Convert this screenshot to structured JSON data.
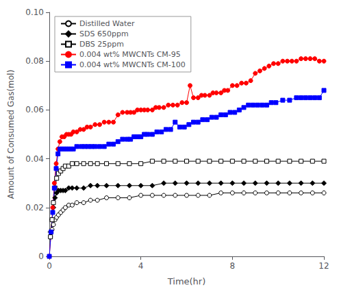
{
  "chart_data": {
    "type": "line",
    "title": "",
    "xlabel": "Time(hr)",
    "ylabel": "Amount of Consumed Gas(mol)",
    "xlim": [
      0,
      12
    ],
    "ylim": [
      0,
      0.1
    ],
    "xticks": [
      0,
      4,
      8,
      12
    ],
    "yticks": [
      0,
      0.02,
      0.04,
      0.06,
      0.08,
      {
        "value": 0.1,
        "label": "0.10"
      }
    ],
    "grid": false,
    "legend": "upper-left",
    "series": [
      {
        "name": "Distilled Water",
        "color": "black",
        "marker": "open-circle",
        "x": [
          0.05,
          0.12,
          0.18,
          0.25,
          0.32,
          0.4,
          0.5,
          0.6,
          0.7,
          0.85,
          1.0,
          1.2,
          1.5,
          1.8,
          2.1,
          2.5,
          3.0,
          3.5,
          4.0,
          4.5,
          5.0,
          5.5,
          6.0,
          6.5,
          7.0,
          7.5,
          8.0,
          8.5,
          9.0,
          9.5,
          10.0,
          10.5,
          11.0,
          11.5,
          12.0
        ],
        "values": [
          0.008,
          0.011,
          0.013,
          0.015,
          0.016,
          0.017,
          0.018,
          0.019,
          0.02,
          0.021,
          0.021,
          0.022,
          0.022,
          0.023,
          0.023,
          0.024,
          0.024,
          0.024,
          0.025,
          0.025,
          0.025,
          0.025,
          0.025,
          0.025,
          0.025,
          0.026,
          0.026,
          0.026,
          0.026,
          0.026,
          0.026,
          0.026,
          0.026,
          0.026,
          0.026
        ]
      },
      {
        "name": "SDS 650ppm",
        "color": "black",
        "marker": "diamond",
        "x": [
          0.05,
          0.12,
          0.18,
          0.25,
          0.32,
          0.4,
          0.5,
          0.6,
          0.7,
          0.85,
          1.0,
          1.2,
          1.5,
          1.8,
          2.1,
          2.5,
          3.0,
          3.5,
          4.0,
          4.5,
          5.0,
          5.5,
          6.0,
          6.5,
          7.0,
          7.5,
          8.0,
          8.5,
          9.0,
          9.5,
          10.0,
          10.5,
          11.0,
          11.5,
          12.0
        ],
        "values": [
          0.01,
          0.015,
          0.02,
          0.024,
          0.026,
          0.027,
          0.027,
          0.027,
          0.027,
          0.028,
          0.028,
          0.028,
          0.028,
          0.029,
          0.029,
          0.029,
          0.029,
          0.029,
          0.029,
          0.029,
          0.03,
          0.03,
          0.03,
          0.03,
          0.03,
          0.03,
          0.03,
          0.03,
          0.03,
          0.03,
          0.03,
          0.03,
          0.03,
          0.03,
          0.03
        ]
      },
      {
        "name": "DBS 25ppm",
        "color": "black",
        "marker": "open-square",
        "x": [
          0.05,
          0.12,
          0.18,
          0.25,
          0.32,
          0.4,
          0.5,
          0.6,
          0.7,
          0.85,
          1.0,
          1.2,
          1.5,
          1.8,
          2.1,
          2.5,
          3.0,
          3.5,
          4.0,
          4.5,
          5.0,
          5.5,
          6.0,
          6.5,
          7.0,
          7.5,
          8.0,
          8.5,
          9.0,
          9.5,
          10.0,
          10.5,
          11.0,
          11.5,
          12.0
        ],
        "values": [
          0.008,
          0.015,
          0.022,
          0.028,
          0.032,
          0.034,
          0.035,
          0.036,
          0.037,
          0.037,
          0.038,
          0.038,
          0.038,
          0.038,
          0.038,
          0.038,
          0.038,
          0.038,
          0.038,
          0.039,
          0.039,
          0.039,
          0.039,
          0.039,
          0.039,
          0.039,
          0.039,
          0.039,
          0.039,
          0.039,
          0.039,
          0.039,
          0.039,
          0.039,
          0.039
        ]
      },
      {
        "name": "0.004 wt% MWCNTs CM-95",
        "color": "red",
        "marker": "circle",
        "x": [
          0.0,
          0.08,
          0.15,
          0.22,
          0.3,
          0.38,
          0.46,
          0.55,
          0.65,
          0.75,
          0.85,
          0.95,
          1.05,
          1.2,
          1.35,
          1.5,
          1.65,
          1.8,
          2.0,
          2.2,
          2.4,
          2.6,
          2.8,
          3.0,
          3.2,
          3.4,
          3.55,
          3.7,
          3.85,
          4.0,
          4.15,
          4.3,
          4.5,
          4.65,
          4.8,
          5.0,
          5.2,
          5.4,
          5.6,
          5.8,
          6.0,
          6.15,
          6.3,
          6.5,
          6.65,
          6.8,
          7.0,
          7.15,
          7.3,
          7.5,
          7.65,
          7.8,
          8.0,
          8.2,
          8.4,
          8.6,
          8.8,
          9.0,
          9.2,
          9.4,
          9.6,
          9.8,
          10.0,
          10.2,
          10.4,
          10.6,
          10.8,
          11.0,
          11.2,
          11.4,
          11.6,
          11.8,
          12.0
        ],
        "values": [
          0.0,
          0.01,
          0.02,
          0.03,
          0.038,
          0.044,
          0.047,
          0.049,
          0.049,
          0.05,
          0.05,
          0.05,
          0.051,
          0.051,
          0.052,
          0.052,
          0.053,
          0.053,
          0.054,
          0.054,
          0.055,
          0.055,
          0.055,
          0.058,
          0.059,
          0.059,
          0.059,
          0.059,
          0.06,
          0.06,
          0.06,
          0.06,
          0.06,
          0.061,
          0.061,
          0.061,
          0.062,
          0.062,
          0.062,
          0.063,
          0.063,
          0.07,
          0.065,
          0.065,
          0.066,
          0.066,
          0.066,
          0.067,
          0.067,
          0.067,
          0.068,
          0.068,
          0.07,
          0.07,
          0.071,
          0.071,
          0.072,
          0.075,
          0.076,
          0.077,
          0.078,
          0.079,
          0.079,
          0.08,
          0.08,
          0.08,
          0.08,
          0.081,
          0.081,
          0.081,
          0.081,
          0.08,
          0.08
        ]
      },
      {
        "name": "0.004 wt% MWCNTs CM-100",
        "color": "blue",
        "marker": "square",
        "x": [
          0.0,
          0.08,
          0.15,
          0.22,
          0.3,
          0.38,
          0.46,
          0.55,
          0.65,
          0.75,
          0.85,
          0.95,
          1.05,
          1.2,
          1.4,
          1.55,
          1.7,
          1.85,
          2.0,
          2.2,
          2.4,
          2.6,
          2.8,
          3.0,
          3.2,
          3.4,
          3.55,
          3.7,
          3.85,
          4.0,
          4.15,
          4.3,
          4.5,
          4.7,
          4.9,
          5.1,
          5.3,
          5.5,
          5.7,
          5.9,
          6.1,
          6.3,
          6.5,
          6.7,
          6.9,
          7.1,
          7.3,
          7.5,
          7.7,
          7.9,
          8.1,
          8.3,
          8.5,
          8.7,
          8.9,
          9.1,
          9.3,
          9.5,
          9.7,
          9.9,
          10.2,
          10.5,
          10.8,
          11.0,
          11.2,
          11.4,
          11.6,
          11.8,
          12.0
        ],
        "values": [
          0.0,
          0.01,
          0.018,
          0.028,
          0.036,
          0.042,
          0.044,
          0.044,
          0.044,
          0.044,
          0.044,
          0.044,
          0.044,
          0.045,
          0.045,
          0.045,
          0.045,
          0.045,
          0.045,
          0.045,
          0.045,
          0.046,
          0.046,
          0.047,
          0.048,
          0.048,
          0.048,
          0.049,
          0.049,
          0.049,
          0.05,
          0.05,
          0.05,
          0.051,
          0.051,
          0.052,
          0.052,
          0.055,
          0.053,
          0.053,
          0.054,
          0.055,
          0.055,
          0.056,
          0.056,
          0.057,
          0.057,
          0.058,
          0.058,
          0.059,
          0.059,
          0.06,
          0.061,
          0.062,
          0.062,
          0.062,
          0.062,
          0.062,
          0.063,
          0.063,
          0.064,
          0.064,
          0.065,
          0.065,
          0.065,
          0.065,
          0.065,
          0.065,
          0.068
        ]
      }
    ]
  }
}
